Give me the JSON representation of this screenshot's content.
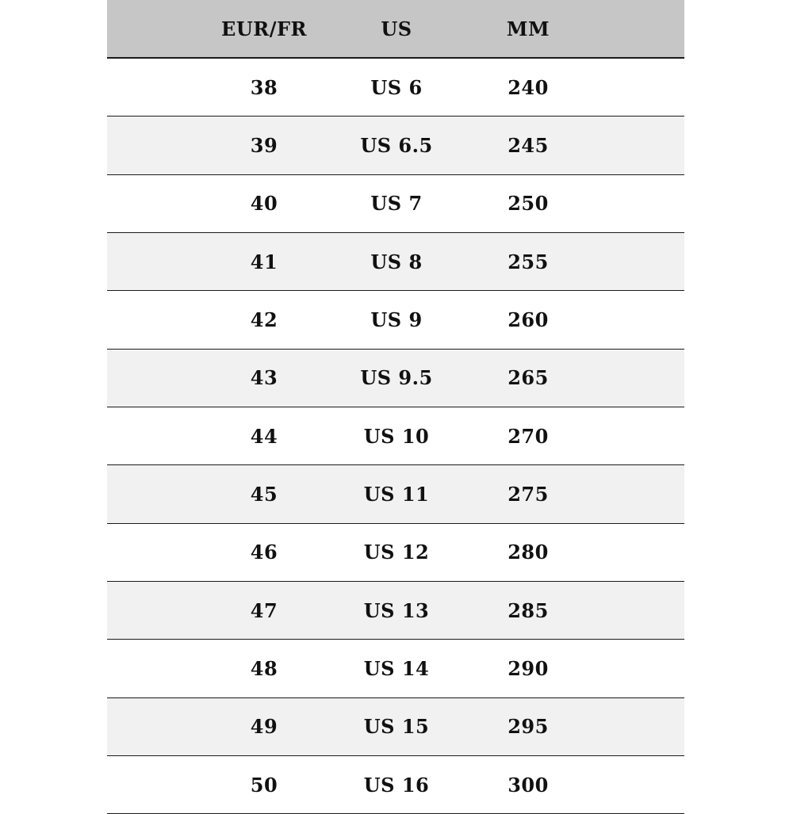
{
  "table": {
    "headers": [
      "EUR/FR",
      "US",
      "MM"
    ],
    "rows": [
      [
        "38",
        "US 6",
        "240"
      ],
      [
        "39",
        "US 6.5",
        "245"
      ],
      [
        "40",
        "US 7",
        "250"
      ],
      [
        "41",
        "US 8",
        "255"
      ],
      [
        "42",
        "US 9",
        "260"
      ],
      [
        "43",
        "US 9.5",
        "265"
      ],
      [
        "44",
        "US 10",
        "270"
      ],
      [
        "45",
        "US 11",
        "275"
      ],
      [
        "46",
        "US 12",
        "280"
      ],
      [
        "47",
        "US 13",
        "285"
      ],
      [
        "48",
        "US 14",
        "290"
      ],
      [
        "49",
        "US 15",
        "295"
      ],
      [
        "50",
        "US 16",
        "300"
      ]
    ]
  },
  "colors": {
    "header_bg": "#c6c6c6",
    "alt_row_bg": "#f1f1f1",
    "text": "#111111"
  }
}
